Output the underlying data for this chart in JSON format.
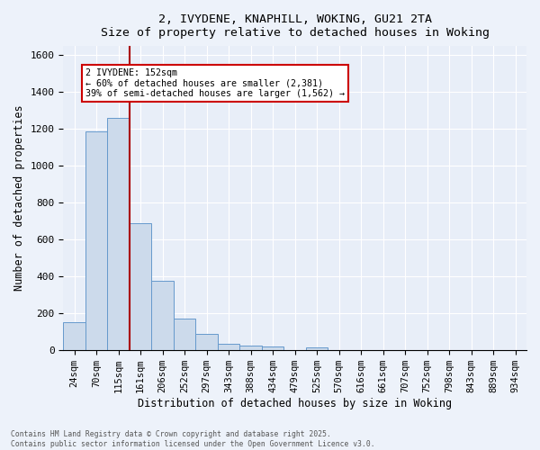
{
  "title_line1": "2, IVYDENE, KNAPHILL, WOKING, GU21 2TA",
  "title_line2": "Size of property relative to detached houses in Woking",
  "xlabel": "Distribution of detached houses by size in Woking",
  "ylabel": "Number of detached properties",
  "bar_color": "#ccdaeb",
  "bar_edge_color": "#6699cc",
  "background_color": "#e8eef8",
  "grid_color": "#ffffff",
  "categories": [
    "24sqm",
    "70sqm",
    "115sqm",
    "161sqm",
    "206sqm",
    "252sqm",
    "297sqm",
    "343sqm",
    "388sqm",
    "434sqm",
    "479sqm",
    "525sqm",
    "570sqm",
    "616sqm",
    "661sqm",
    "707sqm",
    "752sqm",
    "798sqm",
    "843sqm",
    "889sqm",
    "934sqm"
  ],
  "values": [
    150,
    1185,
    1260,
    690,
    375,
    170,
    90,
    35,
    25,
    20,
    0,
    15,
    0,
    0,
    0,
    0,
    0,
    0,
    0,
    0,
    0
  ],
  "red_line_x": 2.5,
  "red_line_color": "#aa0000",
  "annotation_text": "2 IVYDENE: 152sqm\n← 60% of detached houses are smaller (2,381)\n39% of semi-detached houses are larger (1,562) →",
  "annotation_box_color": "#ffffff",
  "annotation_box_edge": "#cc0000",
  "ylim": [
    0,
    1650
  ],
  "yticks": [
    0,
    200,
    400,
    600,
    800,
    1000,
    1200,
    1400,
    1600
  ],
  "footer_line1": "Contains HM Land Registry data © Crown copyright and database right 2025.",
  "footer_line2": "Contains public sector information licensed under the Open Government Licence v3.0."
}
